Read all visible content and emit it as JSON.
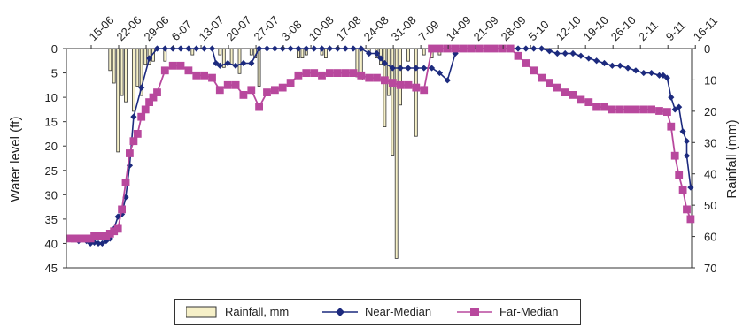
{
  "chart_data": {
    "type": "line",
    "date_labels": [
      "15-06",
      "22-06",
      "29-06",
      "6-07",
      "13-07",
      "20-07",
      "27-07",
      "3-08",
      "10-08",
      "17-08",
      "24-08",
      "31-08",
      "7-09",
      "14-09",
      "21-09",
      "28-09",
      "5-10",
      "12-10",
      "19-10",
      "26-10",
      "2-11",
      "9-11",
      "16-11"
    ],
    "ylabel": "Water level (ft)",
    "y2label": "Rainfall (mm)",
    "ylim": [
      0,
      45
    ],
    "y2lim": [
      0,
      70
    ],
    "yticks": [
      0,
      5,
      10,
      15,
      20,
      25,
      30,
      35,
      40,
      45
    ],
    "y2ticks": [
      0,
      10,
      20,
      30,
      40,
      50,
      60,
      70
    ],
    "y_inverted": true,
    "grid": false,
    "legend_position": "bottom",
    "colors": {
      "rainfall": "#f6f0c8",
      "near": "#1c2a7e",
      "far": "#b8489d"
    },
    "rainfall": {
      "name": "Rainfall, mm",
      "days": [
        10,
        11,
        12,
        13,
        14,
        16,
        17,
        18,
        19,
        20,
        21,
        24,
        31,
        38,
        39,
        41,
        43,
        46,
        47,
        48,
        58,
        59,
        60,
        64,
        65,
        73,
        74,
        76,
        78,
        79,
        80,
        81,
        82,
        83,
        84,
        86,
        88,
        90,
        92,
        94
      ],
      "values": [
        7,
        11,
        33,
        15,
        17,
        20,
        12,
        15,
        5,
        5,
        4,
        4,
        2,
        2,
        6,
        5,
        8,
        2,
        3,
        12,
        3,
        3,
        2,
        2,
        3,
        9,
        10,
        2,
        3,
        5,
        25,
        15,
        34,
        67,
        18,
        4,
        28,
        2,
        3,
        2
      ]
    },
    "near_median": {
      "name": "Near-Median",
      "days": [
        0,
        2,
        4,
        5,
        6,
        7,
        8,
        9,
        10,
        11,
        12,
        13,
        14,
        15,
        16,
        18,
        20,
        22,
        24,
        26,
        28,
        30,
        32,
        34,
        36,
        37,
        38,
        40,
        42,
        44,
        46,
        48,
        50,
        52,
        54,
        56,
        58,
        60,
        62,
        64,
        66,
        68,
        70,
        72,
        74,
        76,
        78,
        79,
        80,
        82,
        84,
        86,
        88,
        90,
        92,
        94,
        96,
        98,
        100,
        102,
        104,
        106,
        108,
        110,
        112,
        114,
        116,
        118,
        120,
        122,
        124,
        126,
        128,
        130,
        132,
        134,
        136,
        138,
        140,
        142,
        144,
        146,
        148,
        150,
        151,
        152,
        153,
        154,
        155,
        156,
        157
      ],
      "values": [
        39,
        39.5,
        39.5,
        40,
        39.8,
        40,
        40,
        39.5,
        39,
        37,
        34.5,
        34,
        30.5,
        24,
        14,
        8,
        2,
        0,
        0,
        0,
        0,
        0,
        0,
        0,
        0,
        3,
        3.5,
        3,
        3.5,
        3,
        3,
        0,
        0,
        0,
        0,
        0,
        0,
        0,
        0,
        0,
        0,
        0,
        0,
        0,
        0,
        1,
        1,
        2,
        3,
        4,
        4,
        4,
        4,
        4,
        4,
        5,
        6.5,
        1,
        0,
        0,
        0,
        0,
        0,
        0,
        0,
        0,
        0,
        0,
        0,
        0.5,
        1,
        1,
        1,
        1.5,
        2,
        2.5,
        3,
        3.5,
        3.5,
        4,
        4.5,
        5,
        5,
        5.5,
        5.5,
        6,
        10,
        12.5,
        12,
        17,
        19
      ],
      "extra_days": [
        157,
        158
      ],
      "extra_values": [
        22,
        28.5
      ]
    },
    "far_median": {
      "name": "Far-Median",
      "days": [
        0,
        1,
        2,
        3,
        4,
        5,
        6,
        7,
        8,
        9,
        10,
        11,
        12,
        13,
        14,
        15,
        16,
        17,
        18,
        19,
        20,
        21,
        22,
        24,
        26,
        28,
        30,
        32,
        34,
        36,
        38,
        40,
        42,
        44,
        46,
        48,
        50,
        52,
        54,
        56,
        58,
        60,
        62,
        64,
        66,
        68,
        70,
        72,
        74,
        76,
        78,
        80,
        82,
        84,
        86,
        88,
        90,
        92,
        94,
        96,
        98,
        100,
        102,
        104,
        106,
        108,
        110,
        112,
        114,
        116,
        118,
        120,
        122,
        124,
        126,
        128,
        130,
        132,
        134,
        136,
        138,
        140,
        142,
        144,
        146,
        148,
        150,
        152,
        153,
        154,
        155,
        156,
        157,
        158
      ],
      "values": [
        39,
        39,
        39,
        39,
        39,
        39,
        38.5,
        38.5,
        38.5,
        38.5,
        38,
        37.5,
        37,
        33,
        27.5,
        21.5,
        19,
        17.5,
        14,
        12.5,
        11,
        10,
        9,
        4.5,
        3.5,
        3.5,
        4.5,
        5.5,
        5.5,
        6,
        8.5,
        7.5,
        7.5,
        9.5,
        8.5,
        12,
        9,
        8.5,
        8,
        7,
        5.5,
        5,
        5,
        5.5,
        5,
        5,
        5,
        5,
        5.5,
        6,
        6,
        6.5,
        7,
        7.5,
        7.5,
        8,
        8.5,
        0,
        0,
        0,
        0,
        0,
        0,
        0,
        0,
        0,
        0,
        0,
        1.5,
        3,
        4.5,
        6,
        7,
        8,
        9,
        9.5,
        10.5,
        11,
        12,
        12,
        12.5,
        12.5,
        12.5,
        12.5,
        12.5,
        12.5,
        12.8,
        13,
        16,
        22,
        26,
        29,
        33,
        35
      ]
    }
  },
  "legend": {
    "rainfall_label": "Rainfall, mm",
    "near_label": "Near-Median",
    "far_label": "Far-Median"
  }
}
